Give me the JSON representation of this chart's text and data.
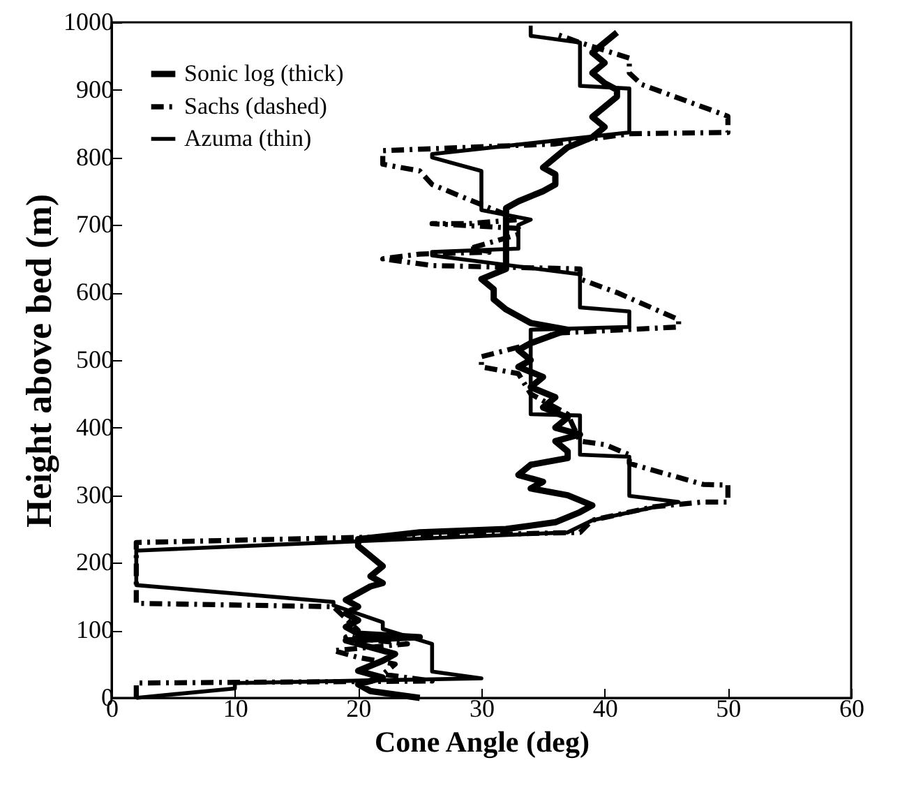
{
  "chart_data": {
    "type": "line",
    "xlabel": "Cone Angle (deg)",
    "ylabel": "Height above bed (m)",
    "xlim": [
      0,
      60
    ],
    "xticks": [
      0,
      10,
      20,
      30,
      40,
      50,
      60
    ],
    "ylim": [
      0,
      1000
    ],
    "yticks": [
      0,
      100,
      200,
      300,
      400,
      500,
      600,
      700,
      800,
      900,
      1000
    ],
    "grid": false,
    "legend": "top left",
    "marker": "none",
    "series": [
      {
        "name": "Sonic log (thick)",
        "color": "#000000",
        "line_style": "solid",
        "x": [
          25,
          21,
          20,
          22,
          20,
          22,
          23,
          21,
          19,
          25,
          20,
          19,
          20,
          19,
          20,
          19,
          20,
          21,
          22,
          21,
          22,
          21,
          20,
          20,
          25,
          32,
          36,
          38,
          39,
          37,
          34,
          35,
          33,
          34,
          37,
          37,
          36,
          38,
          36,
          37,
          35,
          36,
          34,
          35,
          33,
          34,
          33,
          34,
          37,
          34,
          33,
          32,
          31,
          31,
          30,
          32,
          32,
          32,
          32,
          32,
          32,
          33,
          35,
          36,
          36,
          35,
          36,
          37,
          39,
          40,
          39,
          40,
          41,
          41,
          40,
          39,
          40,
          39,
          40,
          41
        ],
        "values": [
          0,
          10,
          20,
          30,
          40,
          55,
          65,
          75,
          85,
          90,
          95,
          105,
          115,
          125,
          135,
          145,
          155,
          165,
          170,
          180,
          195,
          210,
          225,
          235,
          245,
          250,
          260,
          275,
          285,
          300,
          310,
          320,
          330,
          345,
          355,
          365,
          380,
          390,
          400,
          415,
          430,
          445,
          460,
          475,
          490,
          500,
          515,
          525,
          545,
          555,
          565,
          575,
          590,
          605,
          620,
          635,
          650,
          670,
          690,
          710,
          725,
          735,
          750,
          760,
          775,
          785,
          800,
          815,
          830,
          845,
          860,
          875,
          890,
          900,
          910,
          925,
          940,
          955,
          970,
          985
        ]
      },
      {
        "name": "Sachs (dashed)",
        "color": "#000000",
        "line_style": "dashed",
        "x": [
          2,
          2,
          26,
          22,
          23,
          20,
          18,
          24,
          19,
          20,
          18,
          2,
          2,
          38,
          39,
          44,
          48,
          50,
          50,
          48,
          42,
          42,
          40,
          38,
          37,
          34,
          33,
          30,
          30,
          34,
          36,
          46,
          46,
          41,
          38,
          38,
          26,
          22,
          25,
          31,
          29,
          33,
          33,
          26,
          29,
          33,
          28,
          26,
          25,
          22,
          22,
          36,
          42,
          50,
          50,
          43,
          42,
          42,
          38,
          36
        ],
        "values": [
          0,
          22,
          25,
          35,
          50,
          60,
          70,
          80,
          90,
          100,
          135,
          140,
          230,
          245,
          263,
          283,
          290,
          290,
          315,
          316,
          347,
          360,
          375,
          380,
          420,
          450,
          480,
          490,
          505,
          524,
          540,
          549,
          560,
          600,
          620,
          635,
          640,
          650,
          657,
          660,
          665,
          686,
          695,
          702,
          702,
          708,
          745,
          760,
          780,
          790,
          810,
          820,
          835,
          837,
          861,
          908,
          925,
          947,
          970,
          983
        ]
      },
      {
        "name": "Azuma (thin)",
        "color": "#000000",
        "line_style": "solid",
        "x": [
          2,
          10,
          10,
          30,
          26,
          26,
          22,
          22,
          18,
          18,
          2,
          2,
          37,
          39,
          46,
          42,
          42,
          38,
          38,
          34,
          34,
          42,
          42,
          38,
          38,
          26,
          26,
          33,
          33,
          34,
          30,
          30,
          26,
          26,
          42,
          42,
          38,
          38,
          34,
          34
        ],
        "values": [
          0,
          14,
          22,
          29,
          39,
          80,
          102,
          112,
          137,
          142,
          167,
          218,
          245,
          263,
          290,
          299,
          357,
          360,
          418,
          420,
          545,
          549,
          572,
          578,
          627,
          655,
          660,
          665,
          700,
          708,
          722,
          780,
          800,
          805,
          837,
          902,
          906,
          970,
          980,
          995
        ]
      }
    ]
  }
}
